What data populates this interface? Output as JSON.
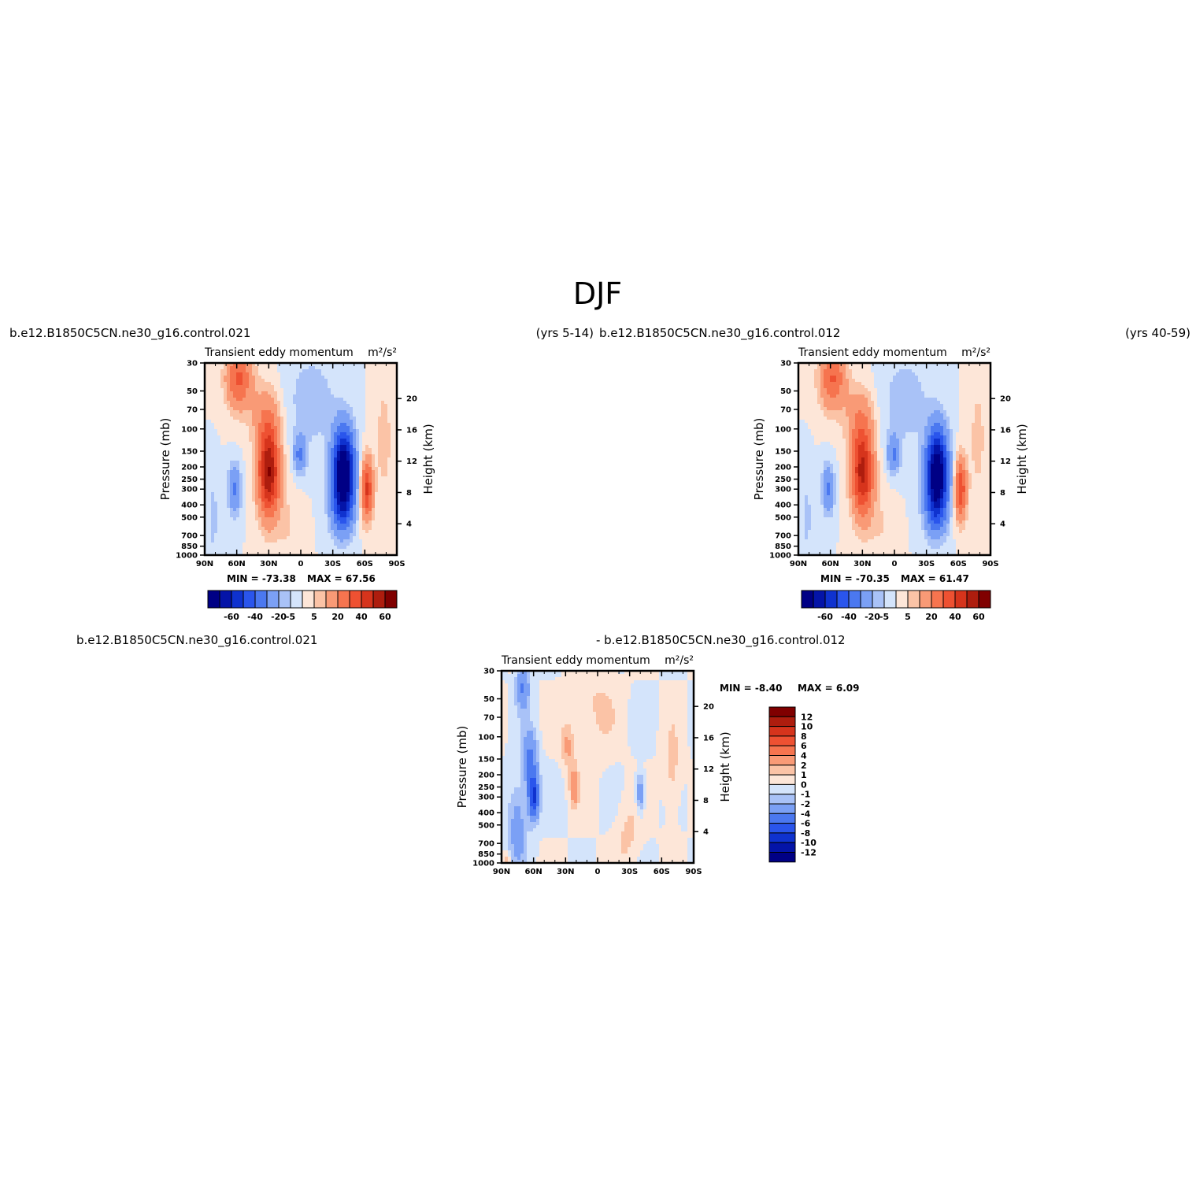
{
  "figure": {
    "title": "DJF"
  },
  "panels": [
    {
      "id": "panel-a",
      "case_name": "b.e12.B1850C5CN.ne30_g16.control.021",
      "years": "(yrs 5-14)",
      "title": "Transient eddy momentum",
      "units": "m²/s²",
      "min_label": "MIN = -73.38",
      "max_label": "MAX = 67.56"
    },
    {
      "id": "panel-b",
      "case_name": "b.e12.B1850C5CN.ne30_g16.control.012",
      "years": "(yrs 40-59)",
      "title": "Transient eddy momentum",
      "units": "m²/s²",
      "min_label": "MIN = -70.35",
      "max_label": "MAX = 61.47"
    },
    {
      "id": "panel-diff",
      "case_name_left": "b.e12.B1850C5CN.ne30_g16.control.021",
      "case_name_right": "- b.e12.B1850C5CN.ne30_g16.control.012",
      "title": "Transient eddy momentum",
      "units": "m²/s²",
      "min_label": "MIN = -8.40",
      "max_label": "MAX = 6.09"
    }
  ],
  "chart_data": [
    {
      "type": "heatmap",
      "subtype": "filled-contour latitude-pressure cross-section",
      "panel": "panel-a",
      "title": "Transient eddy momentum",
      "units": "m²/s²",
      "xlabel": "",
      "ylabel": "Pressure (mb)",
      "y2label": "Height (km)",
      "x_ticks": [
        "90N",
        "60N",
        "30N",
        "0",
        "30S",
        "60S",
        "90S"
      ],
      "x_tick_values": [
        90,
        60,
        30,
        0,
        -30,
        -60,
        -90
      ],
      "y_ticks": [
        30,
        50,
        70,
        100,
        150,
        200,
        250,
        300,
        400,
        500,
        700,
        850,
        1000
      ],
      "y2_ticks": [
        4,
        8,
        12,
        16,
        20
      ],
      "ylim": [
        1000,
        30
      ],
      "min": -73.38,
      "max": 67.56,
      "features": [
        {
          "lat": -40,
          "p": 220,
          "value": -73.38,
          "note": "SH subtropical negative maximum"
        },
        {
          "lat": 30,
          "p": 220,
          "value": 60,
          "note": "NH positive maximum"
        },
        {
          "lat": 62,
          "p": 300,
          "value": -20,
          "note": "NH high-latitude negative"
        },
        {
          "lat": 60,
          "p": 35,
          "value": 30,
          "note": "NH stratospheric positive"
        },
        {
          "lat": -62,
          "p": 300,
          "value": 40,
          "note": "SH high-latitude positive"
        },
        {
          "lat": 0,
          "p": 160,
          "value": -20,
          "note": "tropical negative"
        }
      ]
    },
    {
      "type": "heatmap",
      "subtype": "filled-contour latitude-pressure cross-section",
      "panel": "panel-b",
      "title": "Transient eddy momentum",
      "units": "m²/s²",
      "xlabel": "",
      "ylabel": "Pressure (mb)",
      "y2label": "Height (km)",
      "x_ticks": [
        "90N",
        "60N",
        "30N",
        "0",
        "30S",
        "60S",
        "90S"
      ],
      "x_tick_values": [
        90,
        60,
        30,
        0,
        -30,
        -60,
        -90
      ],
      "y_ticks": [
        30,
        50,
        70,
        100,
        150,
        200,
        250,
        300,
        400,
        500,
        700,
        850,
        1000
      ],
      "y2_ticks": [
        4,
        8,
        12,
        16,
        20
      ],
      "ylim": [
        1000,
        30
      ],
      "min": -70.35,
      "max": 61.47,
      "features": [
        {
          "lat": -40,
          "p": 220,
          "value": -70.35,
          "note": "SH subtropical negative maximum"
        },
        {
          "lat": 30,
          "p": 220,
          "value": 55,
          "note": "NH positive maximum"
        },
        {
          "lat": 62,
          "p": 300,
          "value": -20,
          "note": "NH high-latitude negative"
        },
        {
          "lat": 60,
          "p": 35,
          "value": 30,
          "note": "NH stratospheric positive"
        },
        {
          "lat": -62,
          "p": 300,
          "value": 40,
          "note": "SH high-latitude positive"
        },
        {
          "lat": 0,
          "p": 160,
          "value": -20,
          "note": "tropical negative"
        }
      ]
    },
    {
      "type": "heatmap",
      "subtype": "filled-contour latitude-pressure cross-section (difference)",
      "panel": "panel-diff",
      "title": "Transient eddy momentum",
      "units": "m²/s²",
      "xlabel": "",
      "ylabel": "Pressure (mb)",
      "y2label": "Height (km)",
      "x_ticks": [
        "90N",
        "60N",
        "30N",
        "0",
        "30S",
        "60S",
        "90S"
      ],
      "x_tick_values": [
        90,
        60,
        30,
        0,
        -30,
        -60,
        -90
      ],
      "y_ticks": [
        30,
        50,
        70,
        100,
        150,
        200,
        250,
        300,
        400,
        500,
        700,
        850,
        1000
      ],
      "y2_ticks": [
        4,
        8,
        12,
        16,
        20
      ],
      "ylim": [
        1000,
        30
      ],
      "min": -8.4,
      "max": 6.09,
      "features": [
        {
          "lat": 60,
          "p": 300,
          "value": -8.4,
          "note": "NH high-latitude negative"
        },
        {
          "lat": 70,
          "p": 40,
          "value": -4,
          "note": "NH stratospheric negative"
        },
        {
          "lat": 22,
          "p": 250,
          "value": 3,
          "note": "subtropical positive"
        },
        {
          "lat": -40,
          "p": 280,
          "value": -4,
          "note": "SH negative"
        }
      ]
    }
  ],
  "colorbars": {
    "full": {
      "labels": [
        "-60",
        "-40",
        "-20",
        "-5",
        "5",
        "20",
        "40",
        "60"
      ],
      "colors": [
        "#000085",
        "#0414a8",
        "#0f32cf",
        "#2a55ec",
        "#4b78f0",
        "#7ba0f5",
        "#a9c2f7",
        "#d4e4fb",
        "#fde6d8",
        "#fbc3a6",
        "#f99a76",
        "#f6744f",
        "#ee5132",
        "#d6341c",
        "#ae1d0e",
        "#800000"
      ]
    },
    "diff": {
      "labels": [
        "12",
        "10",
        "8",
        "6",
        "4",
        "2",
        "1",
        "0",
        "-1",
        "-2",
        "-4",
        "-6",
        "-8",
        "-10",
        "-12"
      ],
      "colors": [
        "#800000",
        "#ae1d0e",
        "#d6341c",
        "#ee5132",
        "#f6744f",
        "#f99a76",
        "#fbc3a6",
        "#fde6d8",
        "#d4e4fb",
        "#a9c2f7",
        "#7ba0f5",
        "#4b78f0",
        "#2a55ec",
        "#0f32cf",
        "#0414a8",
        "#000085"
      ]
    }
  }
}
